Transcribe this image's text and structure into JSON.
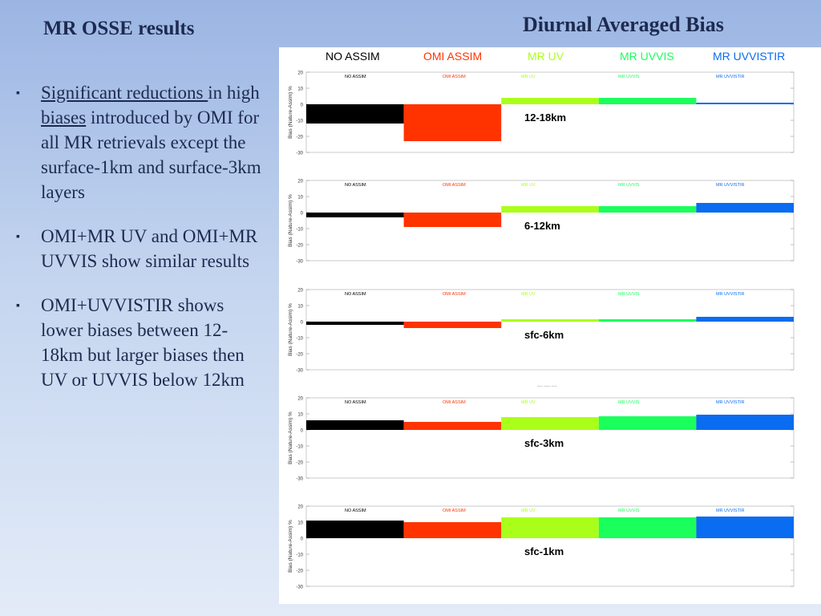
{
  "slide": {
    "title": "MR OSSE results",
    "chart_heading": "Diurnal Averaged Bias"
  },
  "bullets": [
    {
      "parts": [
        {
          "text": "Significant reductions ",
          "underline": true
        },
        {
          "text": "in high ",
          "underline": false
        },
        {
          "text": "biases",
          "underline": true
        },
        {
          "text": " introduced by OMI for all MR retrievals except the surface-1km and surface-3km layers",
          "underline": false
        }
      ]
    },
    {
      "parts": [
        {
          "text": "OMI+MR UV and OMI+MR UVVIS show similar results",
          "underline": false
        }
      ]
    },
    {
      "parts": [
        {
          "text": "OMI+UVVISTIR shows lower biases between 12-18km but larger biases then UV or UVVIS below 12km",
          "underline": false
        }
      ]
    }
  ],
  "legend": [
    {
      "label": "NO ASSIM",
      "color": "#000000"
    },
    {
      "label": "OMI ASSIM",
      "color": "#ff3300"
    },
    {
      "label": "MR UV",
      "color": "#aaff1a"
    },
    {
      "label": "MR UVVIS",
      "color": "#1aff5c"
    },
    {
      "label": "MR UVVISTIR",
      "color": "#0a6cf0"
    }
  ],
  "separator_text": "---- ----- ----",
  "chart_data": [
    {
      "type": "bar",
      "layer_label": "12-18km",
      "categories": [
        "NO ASSIM",
        "OMI ASSIM",
        "MR UV",
        "MR UVVIS",
        "MR UVVISTIR"
      ],
      "values": [
        -12,
        -23,
        4,
        4,
        1
      ],
      "ylabel": "Bias (Nature-Assim) %",
      "ylim": [
        -30,
        20
      ],
      "yticks": [
        20,
        10,
        0,
        -10,
        -20,
        -30
      ],
      "legend_placement": "top"
    },
    {
      "type": "bar",
      "layer_label": "6-12km",
      "categories": [
        "NO ASSIM",
        "OMI ASSIM",
        "MR UV",
        "MR UVVIS",
        "MR UVVISTIR"
      ],
      "values": [
        -3,
        -9,
        4,
        4,
        6
      ],
      "ylabel": "Bias (Nature-Assim) %",
      "ylim": [
        -30,
        20
      ],
      "yticks": [
        20,
        10,
        0,
        -10,
        -20,
        -30
      ],
      "legend_placement": "top"
    },
    {
      "type": "bar",
      "layer_label": "sfc-6km",
      "categories": [
        "NO ASSIM",
        "OMI ASSIM",
        "MR UV",
        "MR UVVIS",
        "MR UVVISTIR"
      ],
      "values": [
        -2,
        -4,
        1.5,
        1.5,
        3
      ],
      "ylabel": "Bias (Nature-Assim) %",
      "ylim": [
        -30,
        20
      ],
      "yticks": [
        20,
        10,
        0,
        -10,
        -20,
        -30
      ],
      "legend_placement": "top"
    },
    {
      "type": "bar",
      "layer_label": "sfc-3km",
      "categories": [
        "NO ASSIM",
        "OMI ASSIM",
        "MR UV",
        "MR UVVIS",
        "MR UVVISTIR"
      ],
      "values": [
        6,
        5,
        8,
        8.5,
        9.5
      ],
      "ylabel": "Bias (Nature-Assim) %",
      "ylim": [
        -30,
        20
      ],
      "yticks": [
        20,
        10,
        0,
        -10,
        -20,
        -30
      ],
      "legend_placement": "top"
    },
    {
      "type": "bar",
      "layer_label": "sfc-1km",
      "categories": [
        "NO ASSIM",
        "OMI ASSIM",
        "MR UV",
        "MR UVVIS",
        "MR UVVISTIR"
      ],
      "values": [
        11,
        10,
        13,
        13,
        13.5
      ],
      "ylabel": "Bias (Nature-Assim) %",
      "ylim": [
        -30,
        20
      ],
      "yticks": [
        20,
        10,
        0,
        -10,
        -20,
        -30
      ],
      "legend_placement": "top"
    }
  ]
}
